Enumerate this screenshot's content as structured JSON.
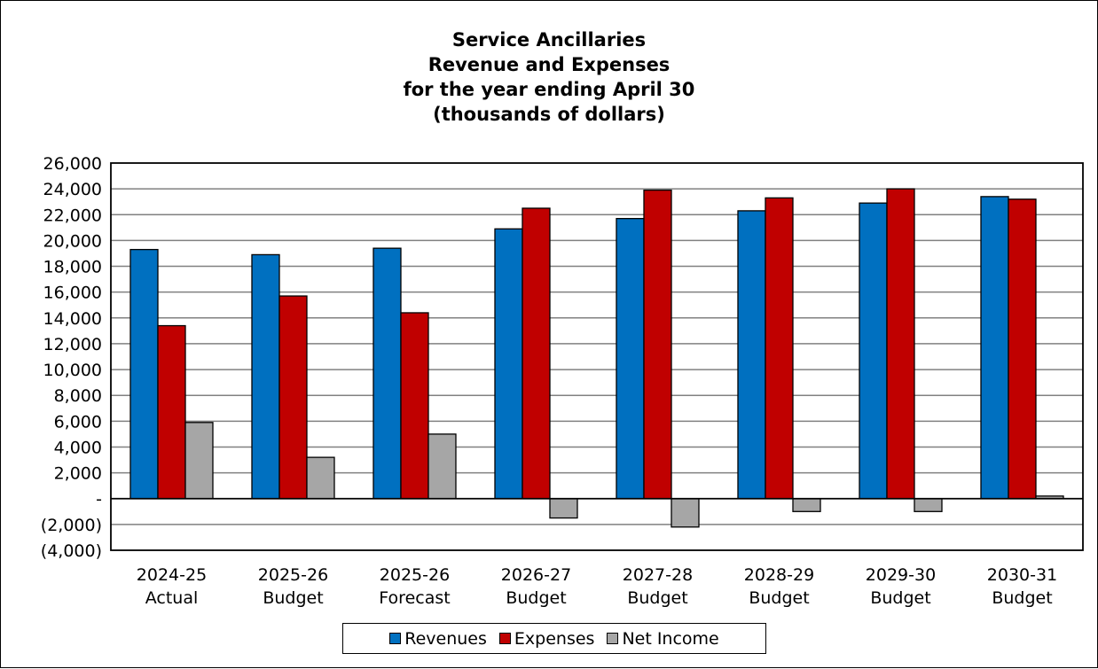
{
  "colors": {
    "revenues": "#0070C0",
    "expenses": "#C00000",
    "net_income": "#A6A6A6",
    "grid": "#808080"
  },
  "chart_data": {
    "type": "bar",
    "title": [
      "Service Ancillaries",
      "Revenue and Expenses",
      "for the year ending April 30",
      "(thousands of dollars)"
    ],
    "categories": [
      [
        "2024-25",
        "Actual"
      ],
      [
        "2025-26",
        "Budget"
      ],
      [
        "2025-26",
        "Forecast"
      ],
      [
        "2026-27",
        "Budget"
      ],
      [
        "2027-28",
        "Budget"
      ],
      [
        "2028-29",
        "Budget"
      ],
      [
        "2029-30",
        "Budget"
      ],
      [
        "2030-31",
        "Budget"
      ]
    ],
    "series": [
      {
        "name": "Revenues",
        "values": [
          19300,
          18900,
          19400,
          20900,
          21700,
          22300,
          22900,
          23400
        ]
      },
      {
        "name": "Expenses",
        "values": [
          13400,
          15700,
          14400,
          22500,
          23900,
          23300,
          24000,
          23200
        ]
      },
      {
        "name": "Net Income",
        "values": [
          5900,
          3200,
          5000,
          -1500,
          -2200,
          -1000,
          -1000,
          200
        ]
      }
    ],
    "ylim": [
      -4000,
      26000
    ],
    "ytick_step": 2000,
    "ytick_labels": [
      "(4,000)",
      "(2,000)",
      "-",
      "2,000",
      "4,000",
      "6,000",
      "8,000",
      "10,000",
      "12,000",
      "14,000",
      "16,000",
      "18,000",
      "20,000",
      "22,000",
      "24,000",
      "26,000"
    ],
    "grid": true,
    "legend_position": "bottom"
  }
}
